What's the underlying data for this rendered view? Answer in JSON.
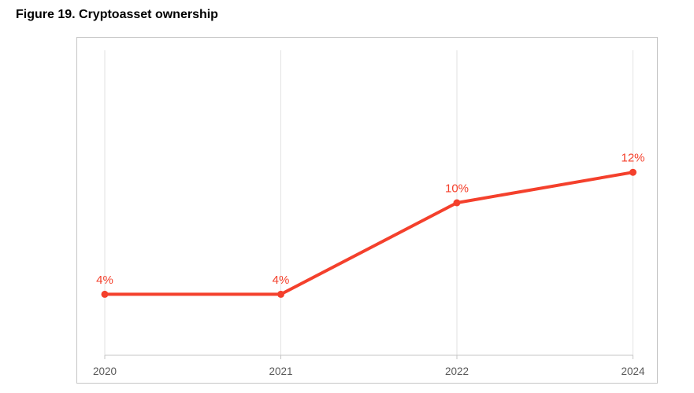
{
  "title": "Figure 19. Cryptoasset ownership",
  "chart_data": {
    "type": "line",
    "title": "Figure 19. Cryptoasset ownership",
    "categories": [
      "2020",
      "2021",
      "2022",
      "2024"
    ],
    "values": [
      4,
      4,
      10,
      12
    ],
    "data_labels": [
      "4%",
      "4%",
      "10%",
      "12%"
    ],
    "xlabel": "",
    "ylabel": "",
    "ylim": [
      0,
      20
    ],
    "legend": "none",
    "grid": "vertical-gridlines",
    "line_color": "#f4402c",
    "marker_color": "#f4402c",
    "data_label_color": "#f4402c",
    "gridline_color": "#e2e2e2",
    "axis_color": "#c4c4c4",
    "tick_label_color": "#595959",
    "panel_border_color": "#c6c6c6"
  }
}
